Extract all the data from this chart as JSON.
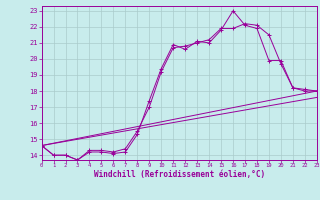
{
  "xlabel": "Windchill (Refroidissement éolien,°C)",
  "background_color": "#c8ecec",
  "grid_color": "#aacccc",
  "line_color": "#990099",
  "tick_color": "#990099",
  "x_ticks": [
    0,
    1,
    2,
    3,
    4,
    5,
    6,
    7,
    8,
    9,
    10,
    11,
    12,
    13,
    14,
    15,
    16,
    17,
    18,
    19,
    20,
    21,
    22,
    23
  ],
  "y_ticks": [
    14,
    15,
    16,
    17,
    18,
    19,
    20,
    21,
    22,
    23
  ],
  "xlim": [
    0,
    23
  ],
  "ylim": [
    13.7,
    23.3
  ],
  "series": [
    {
      "x": [
        0,
        1,
        2,
        3,
        4,
        5,
        6,
        7,
        8,
        9,
        10,
        11,
        12,
        13,
        14,
        15,
        16,
        17,
        18,
        19,
        20,
        21,
        22,
        23
      ],
      "y": [
        14.6,
        14.0,
        14.0,
        13.7,
        14.2,
        14.2,
        14.1,
        14.2,
        15.3,
        17.4,
        19.4,
        20.9,
        20.6,
        21.1,
        21.0,
        21.8,
        23.0,
        22.1,
        21.9,
        19.9,
        19.9,
        18.2,
        18.0,
        18.0
      ],
      "marker": "+"
    },
    {
      "x": [
        0,
        1,
        2,
        3,
        4,
        5,
        6,
        7,
        8,
        9,
        10,
        11,
        12,
        13,
        14,
        15,
        16,
        17,
        18,
        19,
        20,
        21,
        22,
        23
      ],
      "y": [
        14.6,
        14.0,
        14.0,
        13.7,
        14.3,
        14.3,
        14.2,
        14.4,
        15.5,
        17.0,
        19.2,
        20.7,
        20.8,
        21.0,
        21.2,
        21.9,
        21.9,
        22.2,
        22.1,
        21.5,
        19.7,
        18.2,
        18.1,
        18.0
      ],
      "marker": "+"
    },
    {
      "x": [
        0,
        23
      ],
      "y": [
        14.6,
        17.6
      ],
      "marker": null
    },
    {
      "x": [
        0,
        23
      ],
      "y": [
        14.6,
        18.0
      ],
      "marker": null
    }
  ]
}
